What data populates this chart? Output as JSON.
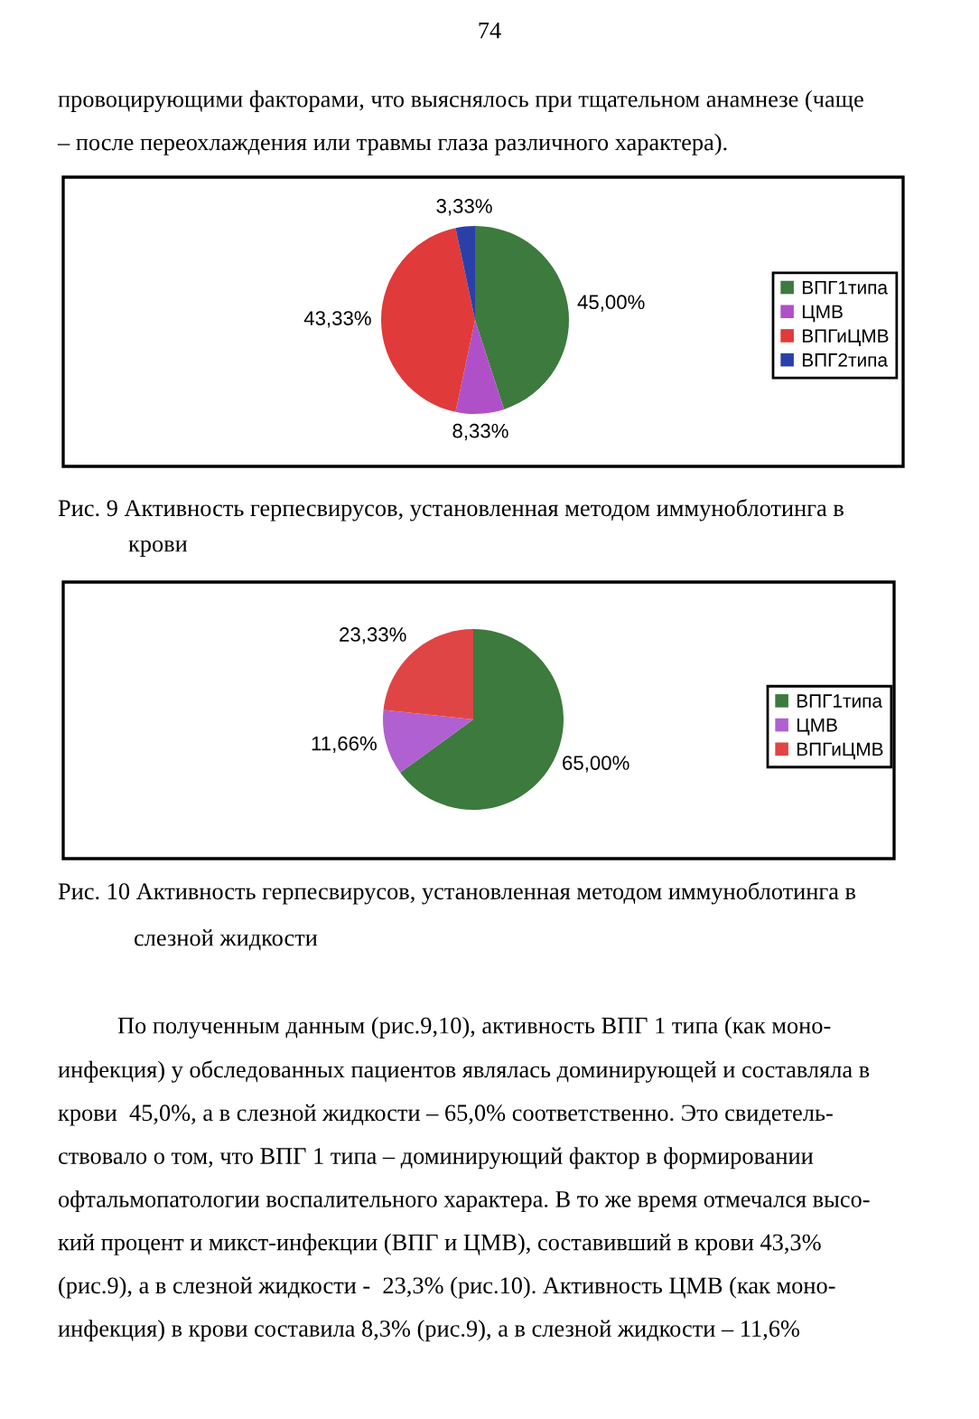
{
  "chart_data": [
    {
      "type": "pie",
      "categories": [
        "ВПГ1типа",
        "ЦМВ",
        "ВПГиЦМВ",
        "ВПГ2типа"
      ],
      "values": [
        45.0,
        8.33,
        43.33,
        3.33
      ],
      "value_labels": [
        "45,00%",
        "8,33%",
        "43,33%",
        "3,33%"
      ],
      "colors": [
        "#3d7a3d",
        "#b050c8",
        "#e03a3a",
        "#2a40a8"
      ],
      "legend": "right",
      "annotations": [
        "74",
        "провоцирующими факторами, что выяснялось при тщательном анамнезе (чаще\n– после переохлаждения или травмы глаза различного характера).",
        "Рис. 9 Активность герпесвирусов, установленная методом иммуноблотинга в",
        "крови"
      ]
    },
    {
      "type": "pie",
      "categories": [
        "ВПГ1типа",
        "ЦМВ",
        "ВПГиЦМВ"
      ],
      "values": [
        65.0,
        11.66,
        23.33
      ],
      "value_labels": [
        "65,00%",
        "11,66%",
        "23,33%"
      ],
      "colors": [
        "#3d7a3d",
        "#b060d0",
        "#e04545"
      ],
      "legend": "right",
      "annotations": [
        "Рис. 10 Активность герпесвирусов, установленная методом иммуноблотинга в",
        "слезной жидкости",
        "По полученным данным (рис.9,10), активность ВПГ 1 типа (как моно-",
        "инфекция) у обследованных пациентов являлась доминирующей и составляла в\nкрови  45,0%, а в слезной жидкости – 65,0% соответственно. Это свидетель-\nствовало о том, что ВПГ 1 типа – доминирующий фактор в формировании\nофтальмопатологии воспалительного характера. В то же время отмечался высо-\nкий процент и микст-инфекции (ВПГ и ЦМВ), составивший в крови 43,3%\n(рис.9), а в слезной жидкости -  23,3% (рис.10). Активность ЦМВ (как моно-\nинфекция) в крови составила 8,3% (рис.9), а в слезной жидкости – 11,6%"
      ]
    }
  ]
}
